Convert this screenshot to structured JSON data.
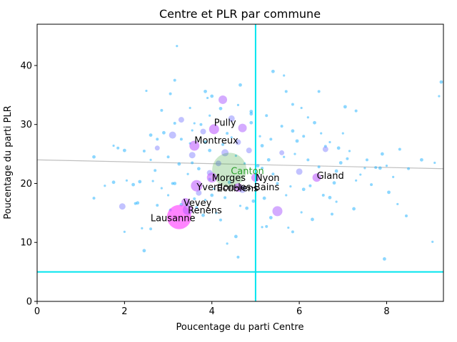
{
  "chart_data": {
    "type": "scatter",
    "title": "Centre et PLR par commune",
    "xlabel": "Poucentage du parti Centre",
    "ylabel": "Poucentage du parti PLR",
    "xlim": [
      0,
      9.3
    ],
    "ylim": [
      0,
      47
    ],
    "xticks": [
      0,
      2,
      4,
      6,
      8
    ],
    "yticks": [
      0,
      10,
      20,
      30,
      40
    ],
    "grid": false,
    "reference_lines": {
      "x": 5,
      "y": 5,
      "color": "#00e5ee"
    },
    "trend_line": {
      "x": [
        0,
        9.3
      ],
      "y": [
        24.0,
        22.5
      ],
      "color": "#bfbfbf"
    },
    "canton": {
      "label": "Canton",
      "x": 4.4,
      "y": 22.3,
      "r": 24,
      "color": "#2ca02c"
    },
    "cities": [
      {
        "name": "Lausanne",
        "x": 3.25,
        "y": 14.3,
        "r": 17,
        "label_dx": -40,
        "label_dy": 6
      },
      {
        "name": "Renens",
        "x": 3.45,
        "y": 15.5,
        "r": 7,
        "label_dx": 0,
        "label_dy": 5
      },
      {
        "name": "Vevey",
        "x": 3.4,
        "y": 16.8,
        "r": 6,
        "label_dx": -3,
        "label_dy": 5
      },
      {
        "name": "Yverdon-les-Bains",
        "x": 3.65,
        "y": 19.6,
        "r": 8,
        "label_dx": 0,
        "label_dy": 6
      },
      {
        "name": "Morges",
        "x": 4.0,
        "y": 21.0,
        "r": 7,
        "label_dx": 0,
        "label_dy": 5
      },
      {
        "name": "Ecublens",
        "x": 4.6,
        "y": 19.3,
        "r": 6,
        "label_dx": -30,
        "label_dy": 5
      },
      {
        "name": "Nyon",
        "x": 5.0,
        "y": 21.0,
        "r": 6,
        "label_dx": 0,
        "label_dy": 5
      },
      {
        "name": "Gland",
        "x": 6.4,
        "y": 21.0,
        "r": 6,
        "label_dx": 0,
        "label_dy": 2
      },
      {
        "name": "Montreux",
        "x": 3.6,
        "y": 26.4,
        "r": 7,
        "label_dx": 0,
        "label_dy": -3
      },
      {
        "name": "Pully",
        "x": 4.05,
        "y": 29.2,
        "r": 7,
        "label_dx": 0,
        "label_dy": -5
      }
    ],
    "medium_points": [
      [
        4.25,
        34.2,
        6
      ],
      [
        4.7,
        29.4,
        6
      ],
      [
        5.5,
        15.3,
        7
      ],
      [
        1.95,
        16.1,
        4.5
      ],
      [
        3.1,
        28.2,
        5
      ],
      [
        4.3,
        25.2,
        5
      ],
      [
        4.45,
        31.0,
        4.5
      ],
      [
        4.7,
        19.0,
        5
      ],
      [
        3.55,
        24.8,
        4.5
      ],
      [
        6.0,
        22.0,
        4.5
      ],
      [
        6.6,
        25.8,
        4
      ],
      [
        3.3,
        30.8,
        4
      ],
      [
        4.6,
        27.0,
        4
      ],
      [
        3.8,
        28.8,
        4
      ],
      [
        4.15,
        23.4,
        4
      ],
      [
        4.85,
        25.6,
        4
      ],
      [
        5.6,
        25.2,
        3.5
      ],
      [
        3.95,
        21.8,
        4
      ],
      [
        2.75,
        26.0,
        3.5
      ],
      [
        3.7,
        18.4,
        4
      ]
    ],
    "small_points": [
      [
        3.2,
        43.3
      ],
      [
        3.15,
        37.5
      ],
      [
        5.4,
        39.0
      ],
      [
        5.65,
        38.3
      ],
      [
        6.45,
        35.6
      ],
      [
        4.65,
        36.7
      ],
      [
        2.5,
        35.7
      ],
      [
        3.05,
        35.2
      ],
      [
        3.85,
        35.6
      ],
      [
        3.9,
        34.5
      ],
      [
        5.7,
        35.6
      ],
      [
        4.0,
        34.8
      ],
      [
        4.6,
        33.3
      ],
      [
        7.3,
        32.3
      ],
      [
        7.05,
        33.0
      ],
      [
        6.05,
        32.8
      ],
      [
        5.85,
        33.4
      ],
      [
        4.2,
        32.7
      ],
      [
        3.5,
        32.8
      ],
      [
        2.85,
        32.4
      ],
      [
        4.9,
        32.2
      ],
      [
        6.2,
        31.2
      ],
      [
        5.25,
        31.5
      ],
      [
        4.9,
        31.8
      ],
      [
        3.95,
        31.5
      ],
      [
        3.15,
        30.2
      ],
      [
        6.35,
        30.3
      ],
      [
        6.5,
        28.5
      ],
      [
        5.6,
        29.7
      ],
      [
        5.85,
        28.9
      ],
      [
        7.0,
        28.5
      ],
      [
        6.1,
        28.0
      ],
      [
        2.6,
        28.2
      ],
      [
        3.6,
        30.2
      ],
      [
        3.75,
        30.0
      ],
      [
        4.9,
        30.3
      ],
      [
        5.1,
        28.0
      ],
      [
        2.75,
        27.5
      ],
      [
        3.85,
        27.0
      ],
      [
        4.45,
        27.8
      ],
      [
        5.35,
        27.5
      ],
      [
        5.95,
        27.2
      ],
      [
        6.7,
        27.0
      ],
      [
        6.6,
        26.3
      ],
      [
        6.9,
        26.0
      ],
      [
        7.15,
        25.5
      ],
      [
        7.55,
        24.0
      ],
      [
        7.9,
        25.0
      ],
      [
        8.0,
        23.0
      ],
      [
        8.5,
        22.5
      ],
      [
        8.8,
        24.0
      ],
      [
        9.1,
        23.5
      ],
      [
        8.3,
        25.8
      ],
      [
        9.25,
        37.2
      ],
      [
        9.2,
        34.8
      ],
      [
        2.45,
        25.5
      ],
      [
        2.0,
        25.6
      ],
      [
        1.75,
        26.4
      ],
      [
        1.85,
        26.0
      ],
      [
        1.3,
        24.5
      ],
      [
        2.6,
        24.0
      ],
      [
        3.0,
        24.5
      ],
      [
        3.25,
        23.3
      ],
      [
        4.75,
        23.4
      ],
      [
        5.15,
        22.6
      ],
      [
        5.3,
        24.0
      ],
      [
        5.65,
        24.5
      ],
      [
        6.2,
        24.0
      ],
      [
        6.95,
        23.5
      ],
      [
        7.4,
        21.5
      ],
      [
        7.75,
        22.7
      ],
      [
        7.85,
        22.6
      ],
      [
        8.15,
        21.1
      ],
      [
        7.65,
        19.8
      ],
      [
        8.05,
        18.5
      ],
      [
        8.25,
        16.5
      ],
      [
        8.45,
        14.5
      ],
      [
        7.95,
        7.2
      ],
      [
        9.05,
        10.1
      ],
      [
        1.3,
        17.5
      ],
      [
        1.75,
        20.2
      ],
      [
        1.55,
        19.6
      ],
      [
        2.25,
        16.6
      ],
      [
        2.3,
        16.7
      ],
      [
        2.85,
        19.2
      ],
      [
        3.1,
        20.0
      ],
      [
        3.15,
        20.0
      ],
      [
        2.65,
        20.4
      ],
      [
        2.7,
        22.2
      ],
      [
        2.35,
        20.3
      ],
      [
        2.4,
        12.4
      ],
      [
        2.6,
        12.3
      ],
      [
        2.45,
        8.6
      ],
      [
        2.0,
        11.8
      ],
      [
        3.05,
        15.5
      ],
      [
        3.8,
        14.6
      ],
      [
        4.1,
        15.0
      ],
      [
        4.2,
        13.8
      ],
      [
        4.55,
        11.0
      ],
      [
        4.35,
        9.8
      ],
      [
        4.6,
        7.5
      ],
      [
        4.8,
        15.8
      ],
      [
        5.15,
        12.6
      ],
      [
        5.25,
        12.7
      ],
      [
        5.35,
        14.2
      ],
      [
        5.75,
        12.5
      ],
      [
        5.85,
        11.8
      ],
      [
        6.3,
        13.9
      ],
      [
        6.05,
        15.1
      ],
      [
        6.75,
        14.8
      ],
      [
        7.25,
        15.7
      ],
      [
        6.85,
        16.9
      ],
      [
        6.55,
        18.0
      ],
      [
        6.1,
        19.0
      ],
      [
        5.8,
        19.5
      ],
      [
        5.5,
        20.0
      ],
      [
        4.95,
        17.0
      ],
      [
        4.65,
        16.2
      ],
      [
        4.3,
        17.6
      ],
      [
        4.0,
        18.0
      ],
      [
        3.85,
        17.2
      ],
      [
        3.6,
        17.4
      ],
      [
        5.2,
        17.5
      ],
      [
        5.7,
        18.0
      ],
      [
        6.25,
        19.6
      ],
      [
        6.8,
        20.1
      ],
      [
        7.3,
        20.5
      ],
      [
        5.4,
        21.6
      ],
      [
        5.05,
        23.0
      ],
      [
        4.55,
        24.7
      ],
      [
        4.25,
        26.6
      ],
      [
        3.95,
        25.6
      ],
      [
        3.5,
        26.8
      ],
      [
        3.3,
        27.5
      ],
      [
        2.9,
        28.6
      ],
      [
        3.55,
        29.0
      ],
      [
        4.35,
        28.5
      ],
      [
        5.15,
        26.4
      ],
      [
        5.9,
        25.0
      ],
      [
        6.45,
        22.8
      ],
      [
        6.85,
        22.1
      ],
      [
        7.5,
        22.6
      ],
      [
        7.1,
        24.2
      ],
      [
        3.7,
        22.5
      ],
      [
        3.45,
        21.6
      ],
      [
        3.95,
        20.7
      ],
      [
        4.4,
        20.2
      ],
      [
        4.05,
        19.1
      ],
      [
        3.65,
        15.9
      ],
      [
        3.3,
        16.4
      ],
      [
        3.0,
        18.0
      ],
      [
        2.75,
        16.3
      ],
      [
        2.2,
        19.8
      ],
      [
        2.05,
        20.5
      ],
      [
        3.55,
        23.5
      ],
      [
        6.7,
        17.6
      ]
    ]
  }
}
